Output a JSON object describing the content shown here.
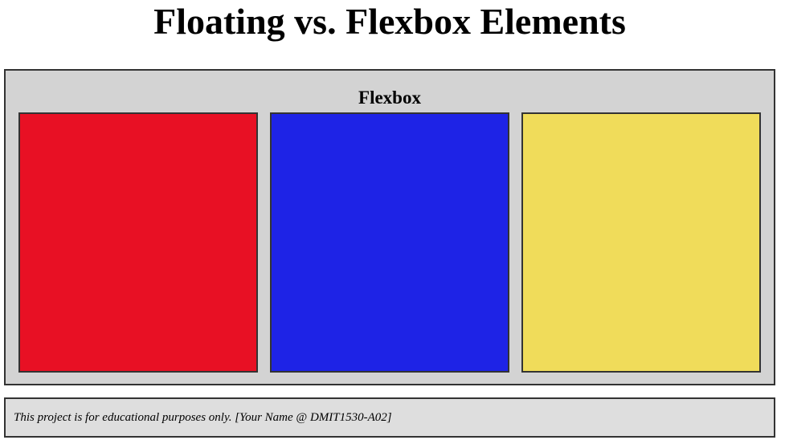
{
  "page": {
    "title": "Floating vs. Flexbox Elements"
  },
  "flex_section": {
    "heading": "Flexbox",
    "boxes": [
      {
        "name": "red",
        "color": "#e81024"
      },
      {
        "name": "blue",
        "color": "#1e23e6"
      },
      {
        "name": "yellow",
        "color": "#f0dc5a"
      }
    ]
  },
  "footer": {
    "text": "This project is for educational purposes only. [Your Name @ DMIT1530-A02]"
  }
}
